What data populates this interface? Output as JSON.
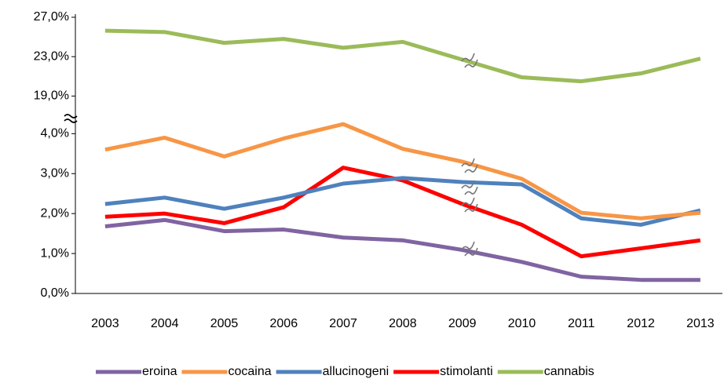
{
  "chart_data": {
    "type": "line",
    "categories": [
      "2003",
      "2004",
      "2005",
      "2006",
      "2007",
      "2008",
      "2009",
      "2010",
      "2011",
      "2012",
      "2013"
    ],
    "series": [
      {
        "name": "eroina",
        "color": "#8064a2",
        "values": [
          1.68,
          1.84,
          1.56,
          1.6,
          1.4,
          1.33,
          1.09,
          0.79,
          0.42,
          0.34,
          0.34
        ]
      },
      {
        "name": "cocaina",
        "color": "#f79646",
        "values": [
          3.6,
          3.9,
          3.43,
          3.88,
          4.24,
          3.62,
          3.3,
          2.87,
          2.02,
          1.88,
          2.02
        ]
      },
      {
        "name": "allucinogeni",
        "color": "#4f81bd",
        "values": [
          2.24,
          2.4,
          2.12,
          2.4,
          2.75,
          2.89,
          2.79,
          2.73,
          1.88,
          1.72,
          2.08
        ]
      },
      {
        "name": "stimolanti",
        "color": "#ff0000",
        "values": [
          1.92,
          2.0,
          1.76,
          2.16,
          3.15,
          2.83,
          2.24,
          1.72,
          0.93,
          1.13,
          1.33
        ]
      },
      {
        "name": "cannabis",
        "color": "#9bbb59",
        "values": [
          25.64,
          25.5,
          24.4,
          24.8,
          23.9,
          24.5,
          22.7,
          20.9,
          20.5,
          21.3,
          22.8
        ]
      }
    ],
    "ylim": [
      0,
      27
    ],
    "y_break": [
      4.4,
      16.8
    ],
    "yticks": [
      {
        "value": 0,
        "label": "0,0%"
      },
      {
        "value": 1,
        "label": "1,0%"
      },
      {
        "value": 2,
        "label": "2,0%"
      },
      {
        "value": 3,
        "label": "3,0%"
      },
      {
        "value": 4,
        "label": "4,0%"
      },
      {
        "value": 19,
        "label": "19,0%"
      },
      {
        "value": 23,
        "label": "23,0%"
      },
      {
        "value": 27,
        "label": "27,0%"
      }
    ],
    "grid": false,
    "legend": "bottom"
  }
}
